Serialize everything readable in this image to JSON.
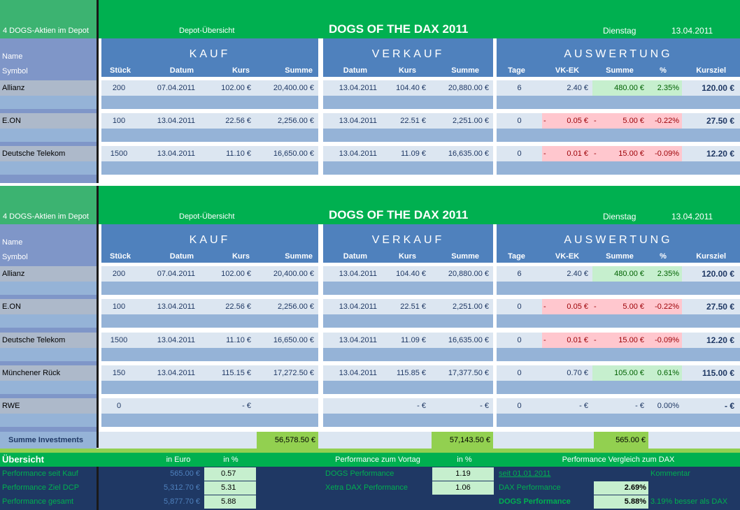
{
  "sections": [
    {
      "depot_count": "4 DOGS-Aktien im Depot",
      "depot_label": "Depot-Übersicht",
      "title": "DOGS OF THE DAX 2011",
      "weekday": "Dienstag",
      "date": "13.04.2011",
      "name_label": "Name",
      "symbol_label": "Symbol",
      "groups": {
        "kauf": "KAUF",
        "verkauf": "VERKAUF",
        "auswertung": "AUSWERTUNG"
      },
      "cols": {
        "stueck": "Stück",
        "datum": "Datum",
        "kurs": "Kurs",
        "summe": "Summe",
        "v_datum": "Datum",
        "v_kurs": "Kurs",
        "v_summe": "Summe",
        "tage": "Tage",
        "vkek": "VK-EK",
        "a_summe": "Summe",
        "pct": "%",
        "kursziel": "Kursziel"
      },
      "rows": [
        {
          "name": "Allianz",
          "stueck": "200",
          "datum": "07.04.2011",
          "kurs": "102.00 €",
          "summe": "20,400.00 €",
          "v_datum": "13.04.2011",
          "v_kurs": "104.40 €",
          "v_summe": "20,880.00 €",
          "tage": "6",
          "vkek_sign": "",
          "vkek": "2.40 €",
          "sum_sign": "",
          "sum": "480.00 €",
          "pct": "2.35%",
          "kursziel": "120.00 €",
          "state": "pos"
        },
        {
          "name": "E.ON",
          "stueck": "100",
          "datum": "13.04.2011",
          "kurs": "22.56 €",
          "summe": "2,256.00 €",
          "v_datum": "13.04.2011",
          "v_kurs": "22.51 €",
          "v_summe": "2,251.00 €",
          "tage": "0",
          "vkek_sign": "-",
          "vkek": "0.05 €",
          "sum_sign": "-",
          "sum": "5.00 €",
          "pct": "-0.22%",
          "kursziel": "27.50 €",
          "state": "neg"
        },
        {
          "name": "Deutsche Telekom",
          "stueck": "1500",
          "datum": "13.04.2011",
          "kurs": "11.10 €",
          "summe": "16,650.00 €",
          "v_datum": "13.04.2011",
          "v_kurs": "11.09 €",
          "v_summe": "16,635.00 €",
          "tage": "0",
          "vkek_sign": "-",
          "vkek": "0.01 €",
          "sum_sign": "-",
          "sum": "15.00 €",
          "pct": "-0.09%",
          "kursziel": "12.20 €",
          "state": "neg"
        }
      ]
    },
    {
      "depot_count": "4 DOGS-Aktien im Depot",
      "depot_label": "Depot-Übersicht",
      "title": "DOGS OF THE DAX 2011",
      "weekday": "Dienstag",
      "date": "13.04.2011",
      "name_label": "Name",
      "symbol_label": "Symbol",
      "groups": {
        "kauf": "KAUF",
        "verkauf": "VERKAUF",
        "auswertung": "AUSWERTUNG"
      },
      "cols": {
        "stueck": "Stück",
        "datum": "Datum",
        "kurs": "Kurs",
        "summe": "Summe",
        "v_datum": "Datum",
        "v_kurs": "Kurs",
        "v_summe": "Summe",
        "tage": "Tage",
        "vkek": "VK-EK",
        "a_summe": "Summe",
        "pct": "%",
        "kursziel": "Kursziel"
      },
      "rows": [
        {
          "name": "Allianz",
          "stueck": "200",
          "datum": "07.04.2011",
          "kurs": "102.00 €",
          "summe": "20,400.00 €",
          "v_datum": "13.04.2011",
          "v_kurs": "104.40 €",
          "v_summe": "20,880.00 €",
          "tage": "6",
          "vkek_sign": "",
          "vkek": "2.40 €",
          "sum_sign": "",
          "sum": "480.00 €",
          "pct": "2.35%",
          "kursziel": "120.00 €",
          "state": "pos"
        },
        {
          "name": "E.ON",
          "stueck": "100",
          "datum": "13.04.2011",
          "kurs": "22.56 €",
          "summe": "2,256.00 €",
          "v_datum": "13.04.2011",
          "v_kurs": "22.51 €",
          "v_summe": "2,251.00 €",
          "tage": "0",
          "vkek_sign": "-",
          "vkek": "0.05 €",
          "sum_sign": "-",
          "sum": "5.00 €",
          "pct": "-0.22%",
          "kursziel": "27.50 €",
          "state": "neg"
        },
        {
          "name": "Deutsche Telekom",
          "stueck": "1500",
          "datum": "13.04.2011",
          "kurs": "11.10 €",
          "summe": "16,650.00 €",
          "v_datum": "13.04.2011",
          "v_kurs": "11.09 €",
          "v_summe": "16,635.00 €",
          "tage": "0",
          "vkek_sign": "-",
          "vkek": "0.01 €",
          "sum_sign": "-",
          "sum": "15.00 €",
          "pct": "-0.09%",
          "kursziel": "12.20 €",
          "state": "neg"
        },
        {
          "name": "Münchener Rück",
          "stueck": "150",
          "datum": "13.04.2011",
          "kurs": "115.15 €",
          "summe": "17,272.50 €",
          "v_datum": "13.04.2011",
          "v_kurs": "115.85 €",
          "v_summe": "17,377.50 €",
          "tage": "0",
          "vkek_sign": "",
          "vkek": "0.70 €",
          "sum_sign": "",
          "sum": "105.00 €",
          "pct": "0.61%",
          "kursziel": "115.00 €",
          "state": "pos"
        },
        {
          "name": "RWE",
          "stueck": "0",
          "datum": "",
          "kurs": "-   €",
          "summe": "",
          "v_datum": "",
          "v_kurs": "-   €",
          "v_summe": "-   €",
          "tage": "0",
          "vkek_sign": "",
          "vkek": "-   €",
          "sum_sign": "",
          "sum": "-   €",
          "pct": "0.00%",
          "kursziel": "-   €",
          "state": "none"
        }
      ],
      "totals": {
        "label": "Summe Investments",
        "kauf": "56,578.50 €",
        "verkauf": "57,143.50 €",
        "auswertung": "565.00 €"
      }
    }
  ],
  "overview": {
    "title": "Übersicht",
    "h_euro": "in Euro",
    "h_pct": "in %",
    "h_vortag": "Performance zum Vortag",
    "h_vortag_pct": "in %",
    "h_dax": "Performance Vergleich zum DAX",
    "left_rows": [
      {
        "label": "Performance seit Kauf",
        "euro": "565.00 €",
        "pct": "0.57"
      },
      {
        "label": "Performance Ziel DCP",
        "euro": "5,312.70 €",
        "pct": "5.31"
      },
      {
        "label": "Performance gesamt",
        "euro": "5,877.70 €",
        "pct": "5.88"
      }
    ],
    "mid_rows": [
      {
        "label": "DOGS Performance",
        "val": "1.19"
      },
      {
        "label": "Xetra DAX Performance",
        "val": "1.06"
      }
    ],
    "since": "seit 01.01.2011",
    "comment_label": "Kommentar",
    "dax_perf_label": "DAX Performance",
    "dax_perf": "2.69%",
    "dogs_perf_label": "DOGS Performance",
    "dogs_perf": "5.88%",
    "comment": "3.19% besser als DAX"
  }
}
